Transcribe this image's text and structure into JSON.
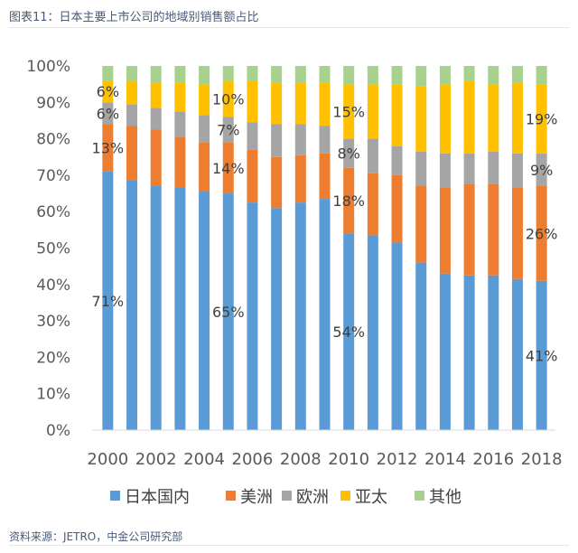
{
  "figure": {
    "title": "图表11：日本主要上市公司的地域别销售额占比",
    "source": "资料来源：JETRO，中金公司研究部"
  },
  "chart_data": {
    "type": "bar",
    "stacked": true,
    "percent": true,
    "categories": [
      "2000",
      "2001",
      "2002",
      "2003",
      "2004",
      "2005",
      "2006",
      "2007",
      "2008",
      "2009",
      "2010",
      "2011",
      "2012",
      "2013",
      "2014",
      "2015",
      "2016",
      "2017",
      "2018"
    ],
    "x_tick_labels": [
      "2000",
      "2002",
      "2004",
      "2006",
      "2008",
      "2010",
      "2012",
      "2014",
      "2016",
      "2018"
    ],
    "ylim": [
      0,
      100
    ],
    "y_ticks": [
      "0%",
      "10%",
      "20%",
      "30%",
      "40%",
      "50%",
      "60%",
      "70%",
      "80%",
      "90%",
      "100%"
    ],
    "legend_position": "bottom",
    "grid": false,
    "series": [
      {
        "name": "日本国内",
        "color": "#5b9bd5",
        "values": [
          71,
          68.5,
          67,
          66.5,
          65.5,
          65,
          62.5,
          61,
          62.5,
          63.5,
          54,
          53.5,
          51.5,
          46,
          43,
          42.5,
          42.5,
          41.5,
          41
        ]
      },
      {
        "name": "美洲",
        "color": "#ed7d31",
        "values": [
          13,
          15,
          15.5,
          14,
          13.5,
          14,
          14.5,
          14,
          13,
          12.5,
          18,
          17,
          18.5,
          21,
          23.5,
          25,
          25,
          25,
          26
        ]
      },
      {
        "name": "欧洲",
        "color": "#a5a5a5",
        "values": [
          6,
          6,
          6,
          7,
          7.5,
          7,
          7.5,
          9,
          8.5,
          7.5,
          8,
          9.5,
          8,
          9.5,
          9.5,
          8.5,
          9,
          9.5,
          9
        ]
      },
      {
        "name": "亚太",
        "color": "#ffc000",
        "values": [
          6,
          6.5,
          7,
          8,
          8.5,
          10,
          11.5,
          11.5,
          11.5,
          12,
          15,
          15,
          17,
          18,
          19,
          20,
          18.5,
          19.5,
          19
        ]
      },
      {
        "name": "其他",
        "color": "#a9d18e",
        "values": [
          4,
          4,
          4.5,
          4.5,
          5,
          4,
          4,
          4.5,
          4.5,
          4.5,
          5,
          5,
          5,
          5.5,
          5,
          4,
          5,
          4.5,
          5
        ]
      }
    ],
    "data_labels": [
      {
        "category": "2000",
        "series": "日本国内",
        "text": "71%"
      },
      {
        "category": "2000",
        "series": "美洲",
        "text": "13%"
      },
      {
        "category": "2000",
        "series": "欧洲",
        "text": "6%"
      },
      {
        "category": "2000",
        "series": "亚太",
        "text": "6%"
      },
      {
        "category": "2005",
        "series": "日本国内",
        "text": "65%"
      },
      {
        "category": "2005",
        "series": "美洲",
        "text": "14%"
      },
      {
        "category": "2005",
        "series": "欧洲",
        "text": "7%"
      },
      {
        "category": "2005",
        "series": "亚太",
        "text": "10%"
      },
      {
        "category": "2010",
        "series": "日本国内",
        "text": "54%"
      },
      {
        "category": "2010",
        "series": "美洲",
        "text": "18%"
      },
      {
        "category": "2010",
        "series": "欧洲",
        "text": "8%"
      },
      {
        "category": "2010",
        "series": "亚太",
        "text": "15%"
      },
      {
        "category": "2018",
        "series": "日本国内",
        "text": "41%"
      },
      {
        "category": "2018",
        "series": "美洲",
        "text": "26%"
      },
      {
        "category": "2018",
        "series": "欧洲",
        "text": "9%"
      },
      {
        "category": "2018",
        "series": "亚太",
        "text": "19%"
      }
    ]
  }
}
